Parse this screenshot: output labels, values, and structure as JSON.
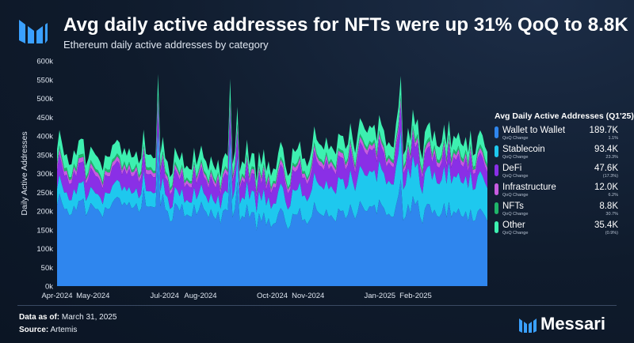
{
  "header": {
    "title": "Avg daily active addresses for NFTs were up 31% QoQ to 8.8K",
    "subtitle": "Ethereum daily active addresses by category"
  },
  "chart_data": {
    "type": "area",
    "stacked": true,
    "ylabel": "Daily Active Addresses",
    "ylim": [
      0,
      600000
    ],
    "y_ticks": [
      0,
      50000,
      100000,
      150000,
      200000,
      250000,
      300000,
      350000,
      400000,
      450000,
      500000,
      550000,
      600000
    ],
    "y_tick_labels": [
      "0k",
      "50k",
      "100k",
      "150k",
      "200k",
      "250k",
      "300k",
      "350k",
      "400k",
      "450k",
      "500k",
      "550k",
      "600k"
    ],
    "x_tick_labels": [
      "Apr-2024",
      "May-2024",
      "Jul-2024",
      "Aug-2024",
      "Oct-2024",
      "Nov-2024",
      "Jan-2025",
      "Feb-2025"
    ],
    "x_tick_months": [
      0,
      1,
      3,
      4,
      6,
      7,
      9,
      10
    ],
    "month_count": 12,
    "grid": false,
    "legend_title": "Avg Daily Active Addresses (Q1'25)",
    "series": [
      {
        "name": "Wallet to Wallet",
        "color": "#2f86ee",
        "avg_value": "189.7K",
        "qoq_change": "1.1%",
        "monthly_avg": [
          215000,
          220000,
          222000,
          205000,
          200000,
          185000,
          180000,
          188000,
          200000,
          210000,
          198000,
          190000
        ]
      },
      {
        "name": "Stablecoin",
        "color": "#1ec8ee",
        "avg_value": "93.4K",
        "qoq_change": "23.3%",
        "monthly_avg": [
          45000,
          42000,
          40000,
          40000,
          45000,
          55000,
          60000,
          75000,
          90000,
          95000,
          95000,
          92000
        ]
      },
      {
        "name": "DeFi",
        "color": "#8a2fe6",
        "avg_value": "47.6K",
        "qoq_change": "(17.3%)",
        "monthly_avg": [
          50000,
          48000,
          45000,
          45000,
          45000,
          45000,
          48000,
          52000,
          58000,
          50000,
          48000,
          46000
        ]
      },
      {
        "name": "Infrastructure",
        "color": "#c85ce0",
        "avg_value": "12.0K",
        "qoq_change": "6.2%",
        "monthly_avg": [
          12000,
          11000,
          11000,
          11000,
          11000,
          11000,
          11500,
          12000,
          12500,
          12000,
          12000,
          12000
        ]
      },
      {
        "name": "NFTs",
        "color": "#1fb56a",
        "avg_value": "8.8K",
        "qoq_change": "30.7%",
        "monthly_avg": [
          8000,
          7500,
          7000,
          7000,
          6500,
          6500,
          6500,
          6800,
          7000,
          8500,
          9000,
          9000
        ]
      },
      {
        "name": "Other",
        "color": "#3df0b0",
        "avg_value": "35.4K",
        "qoq_change": "(0.9%)",
        "monthly_avg": [
          38000,
          36000,
          35000,
          34000,
          34000,
          34000,
          35000,
          36000,
          40000,
          37000,
          36000,
          35000
        ]
      }
    ],
    "spikes": [
      {
        "month": 2.8,
        "total": 565000
      },
      {
        "month": 4.8,
        "total": 552000
      },
      {
        "month": 5.0,
        "total": 478000
      },
      {
        "month": 9.6,
        "total": 560000
      }
    ],
    "qoq_label": "QoQ Change"
  },
  "footer": {
    "data_as_of_label": "Data as of:",
    "data_as_of_value": "March 31, 2025",
    "source_label": "Source:",
    "source_value": "Artemis",
    "brand": "Messari"
  },
  "colors": {
    "background": "#0f1b2c",
    "axis_text": "#dfe6f0"
  }
}
